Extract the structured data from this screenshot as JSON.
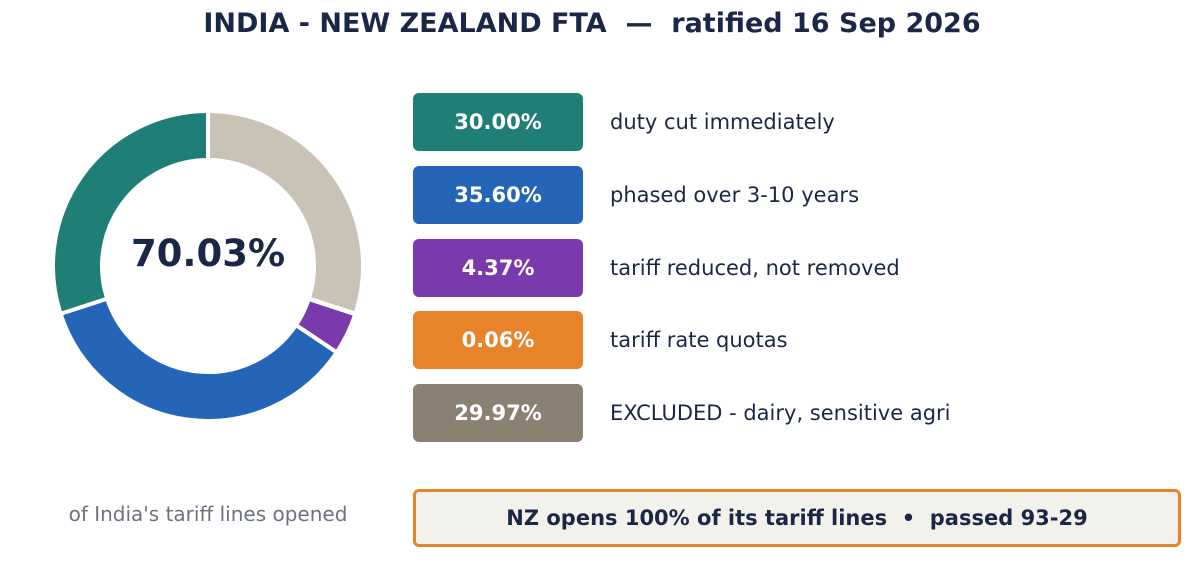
{
  "title": "INDIA - NEW ZEALAND FTA  —  ratified 16 Sep 2026",
  "center_value": "70.03%",
  "caption": "of India's tariff lines opened",
  "legend": [
    {
      "value": "30.00%",
      "label": "duty cut immediately",
      "color": "#1f7f77"
    },
    {
      "value": "35.60%",
      "label": "phased over 3-10 years",
      "color": "#2565b8"
    },
    {
      "value": "4.37%",
      "label": "tariff reduced, not removed",
      "color": "#7b3aab"
    },
    {
      "value": "0.06%",
      "label": "tariff rate quotas",
      "color": "#e8832a"
    },
    {
      "value": "29.97%",
      "label": "EXCLUDED - dairy, sensitive agri",
      "color": "#8a8173"
    }
  ],
  "footer": "NZ opens 100% of its tariff lines  •  passed 93-29",
  "chart_data": {
    "type": "pie",
    "title": "INDIA - NEW ZEALAND FTA  —  ratified 16 Sep 2026",
    "categories": [
      "duty cut immediately",
      "phased over 3-10 years",
      "tariff reduced, not removed",
      "tariff rate quotas",
      "EXCLUDED - dairy, sensitive agri"
    ],
    "values": [
      30.0,
      35.6,
      4.37,
      0.06,
      29.97
    ],
    "colors": [
      "#1f7f77",
      "#2565b8",
      "#7b3aab",
      "#e8832a",
      "#c8c3b5"
    ],
    "direction": "counterclockwise",
    "start": "top",
    "donut": true,
    "center_label": "70.03%"
  }
}
